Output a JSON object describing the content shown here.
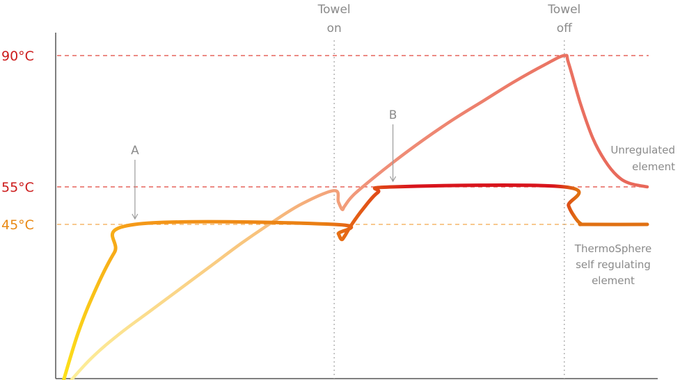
{
  "chart_data": {
    "type": "line",
    "title": "",
    "xlabel": "",
    "ylabel": "",
    "xlim": [
      0,
      100
    ],
    "ylim": [
      0,
      100
    ],
    "y_reference_lines": [
      {
        "label": "90°C",
        "value": 90,
        "color": "#cc1b1b",
        "line_color": "#e0443a"
      },
      {
        "label": "55°C",
        "value": 55,
        "color": "#cc1b1b",
        "line_color": "#e0443a"
      },
      {
        "label": "45°C",
        "value": 45,
        "color": "#e98914",
        "line_color": "#f3a64a"
      }
    ],
    "events": [
      {
        "label_line1": "Towel",
        "label_line2": "on",
        "x": 45.3
      },
      {
        "label_line1": "Towel",
        "label_line2": "off",
        "x": 83.3
      }
    ],
    "annotations": [
      {
        "label": "A",
        "x": 12.4,
        "y": 45
      },
      {
        "label": "B",
        "x": 55.0,
        "y": 55
      }
    ],
    "series": [
      {
        "name_lines": [
          "Unregulated",
          "element"
        ],
        "color_start": "#fdf19a",
        "color_end": "#e8685a",
        "points": [
          [
            0,
            0
          ],
          [
            5,
            9
          ],
          [
            10,
            16
          ],
          [
            15,
            22
          ],
          [
            20,
            28
          ],
          [
            25,
            34
          ],
          [
            30,
            40
          ],
          [
            35,
            45.5
          ],
          [
            40,
            50.5
          ],
          [
            45.3,
            54
          ],
          [
            46,
            51
          ],
          [
            46.6,
            49
          ],
          [
            47,
            49.8
          ],
          [
            48,
            52
          ],
          [
            50,
            55
          ],
          [
            55,
            61.5
          ],
          [
            60,
            67.5
          ],
          [
            65,
            73
          ],
          [
            70,
            78
          ],
          [
            75,
            83
          ],
          [
            80,
            87.5
          ],
          [
            83.3,
            90
          ],
          [
            84,
            88
          ],
          [
            86,
            77
          ],
          [
            88,
            68
          ],
          [
            90,
            62
          ],
          [
            92,
            58
          ],
          [
            94,
            56
          ],
          [
            97,
            55
          ]
        ]
      },
      {
        "name_lines": [
          "ThermoSphere",
          "self regulating",
          "element"
        ],
        "color_start": "#fde51a",
        "color_end": "#e07012",
        "color_hot": "#d8141c",
        "points": [
          [
            0,
            0
          ],
          [
            3,
            16
          ],
          [
            6,
            28
          ],
          [
            9,
            37.5
          ],
          [
            12.4,
            45
          ],
          [
            45.3,
            45
          ],
          [
            46,
            42.5
          ],
          [
            46.5,
            41
          ],
          [
            47,
            41.8
          ],
          [
            48,
            44.5
          ],
          [
            50,
            49
          ],
          [
            52.5,
            53.5
          ],
          [
            55,
            55
          ],
          [
            83.3,
            55
          ],
          [
            84,
            50
          ],
          [
            85,
            47
          ],
          [
            86,
            45.2
          ],
          [
            87,
            45
          ],
          [
            97,
            45
          ]
        ]
      }
    ]
  }
}
